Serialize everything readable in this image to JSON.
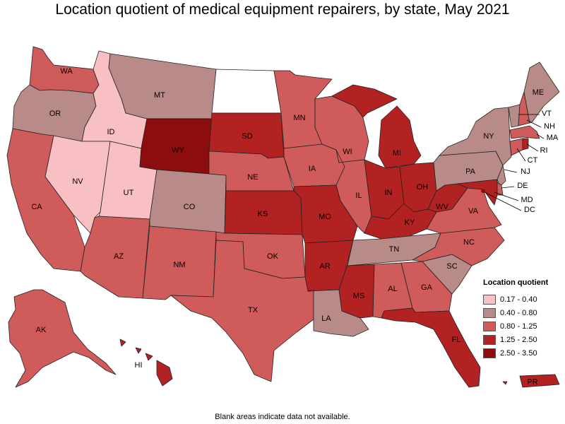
{
  "title": "Location quotient of medical equipment repairers, by state, May 2021",
  "footnote": "Blank areas indicate data not available.",
  "colors": {
    "q1": "#f8c0c2",
    "q2": "#b98b88",
    "q3": "#d05b5b",
    "q4": "#b22222",
    "q5": "#8b0d0d",
    "na": "#ffffff"
  },
  "legend": {
    "title": "Location quotient",
    "items": [
      {
        "label": "0.17 - 0.40",
        "class": "q1"
      },
      {
        "label": "0.40 - 0.80",
        "class": "q2"
      },
      {
        "label": "0.80 - 1.25",
        "class": "q3"
      },
      {
        "label": "1.25 - 2.50",
        "class": "q4"
      },
      {
        "label": "2.50 - 3.50",
        "class": "q5"
      }
    ]
  },
  "states": {
    "WA": "q3",
    "OR": "q2",
    "CA": "q3",
    "ID": "q1",
    "NV": "q1",
    "UT": "q1",
    "AZ": "q3",
    "MT": "q2",
    "WY": "q5",
    "CO": "q2",
    "NM": "q3",
    "ND": "na",
    "SD": "q4",
    "NE": "q3",
    "KS": "q4",
    "OK": "q3",
    "TX": "q3",
    "MN": "q3",
    "IA": "q3",
    "MO": "q4",
    "AR": "q4",
    "LA": "q2",
    "WI": "q3",
    "IL": "q3",
    "MI": "q4",
    "IN": "q4",
    "OH": "q4",
    "KY": "q4",
    "TN": "q2",
    "MS": "q4",
    "AL": "q3",
    "GA": "q3",
    "FL": "q4",
    "SC": "q2",
    "NC": "q3",
    "VA": "q3",
    "WV": "q4",
    "PA": "q2",
    "NY": "q2",
    "ME": "q2",
    "VT": "q2",
    "NH": "q3",
    "MA": "q3",
    "RI": "q4",
    "CT": "q3",
    "NJ": "q2",
    "DE": "q3",
    "MD": "q4",
    "DC": "q5",
    "AK": "q3",
    "HI": "q4",
    "PR": "q4"
  },
  "labels": {
    "WA": "WA",
    "OR": "OR",
    "CA": "CA",
    "ID": "ID",
    "NV": "NV",
    "UT": "UT",
    "AZ": "AZ",
    "MT": "MT",
    "WY": "WY",
    "CO": "CO",
    "NM": "NM",
    "SD": "SD",
    "NE": "NE",
    "KS": "KS",
    "OK": "OK",
    "TX": "TX",
    "MN": "MN",
    "IA": "IA",
    "MO": "MO",
    "AR": "AR",
    "LA": "LA",
    "WI": "WI",
    "IL": "IL",
    "MI": "MI",
    "IN": "IN",
    "OH": "OH",
    "KY": "KY",
    "TN": "TN",
    "MS": "MS",
    "AL": "AL",
    "GA": "GA",
    "FL": "FL",
    "SC": "SC",
    "NC": "NC",
    "VA": "VA",
    "WV": "WV",
    "PA": "PA",
    "NY": "NY",
    "ME": "ME",
    "VT": "VT",
    "NH": "NH",
    "MA": "MA",
    "RI": "RI",
    "CT": "CT",
    "NJ": "NJ",
    "DE": "DE",
    "MD": "MD",
    "DC": "DC",
    "AK": "AK",
    "HI": "HI",
    "PR": "PR"
  }
}
